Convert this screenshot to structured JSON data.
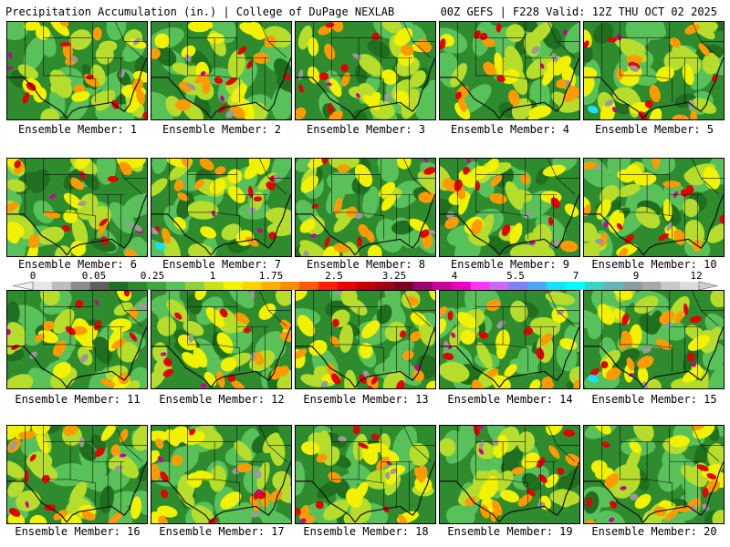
{
  "header": {
    "title_left": "Precipitation Accumulation (in.) | College of DuPage NEXLAB",
    "title_right": "00Z GEFS | F228 Valid: 12Z THU OCT 02 2025"
  },
  "members": [
    {
      "label": "Ensemble Member: 1",
      "seed": 11
    },
    {
      "label": "Ensemble Member: 2",
      "seed": 23
    },
    {
      "label": "Ensemble Member: 3",
      "seed": 37
    },
    {
      "label": "Ensemble Member: 4",
      "seed": 41
    },
    {
      "label": "Ensemble Member: 5",
      "seed": 53
    },
    {
      "label": "Ensemble Member: 6",
      "seed": 67
    },
    {
      "label": "Ensemble Member: 7",
      "seed": 71
    },
    {
      "label": "Ensemble Member: 8",
      "seed": 83
    },
    {
      "label": "Ensemble Member: 9",
      "seed": 97
    },
    {
      "label": "Ensemble Member: 10",
      "seed": 101
    },
    {
      "label": "Ensemble Member: 11",
      "seed": 113
    },
    {
      "label": "Ensemble Member: 12",
      "seed": 127
    },
    {
      "label": "Ensemble Member: 13",
      "seed": 131
    },
    {
      "label": "Ensemble Member: 14",
      "seed": 149
    },
    {
      "label": "Ensemble Member: 15",
      "seed": 151
    },
    {
      "label": "Ensemble Member: 16",
      "seed": 163
    },
    {
      "label": "Ensemble Member: 17",
      "seed": 173
    },
    {
      "label": "Ensemble Member: 18",
      "seed": 181
    },
    {
      "label": "Ensemble Member: 19",
      "seed": 191
    },
    {
      "label": "Ensemble Member: 20",
      "seed": 199
    }
  ],
  "legend": {
    "tick_labels": [
      "0",
      "0.05",
      "0.25",
      "1",
      "1.75",
      "2.5",
      "3.25",
      "4",
      "5.5",
      "7",
      "9",
      "12"
    ],
    "colors": [
      "#e6e6e6",
      "#bdbdbd",
      "#8c8c8c",
      "#5f5f5f",
      "#1f6f1f",
      "#2e8b2e",
      "#3ca83c",
      "#59c159",
      "#8fd13a",
      "#c8e01e",
      "#f2f200",
      "#ffd400",
      "#ffb000",
      "#ff8c00",
      "#ff5a00",
      "#ff1e00",
      "#e60000",
      "#c00000",
      "#a00010",
      "#800020",
      "#a0006e",
      "#c8009b",
      "#e600c8",
      "#ff33ff",
      "#cc66ff",
      "#8080ff",
      "#4da6ff",
      "#1ae0ff",
      "#00ffff",
      "#33d6c8",
      "#5fb8b8",
      "#8c9c9c",
      "#a8a8a8",
      "#c8c8c8",
      "#dcdcdc"
    ]
  },
  "palette": {
    "green_dark": "#1f6f1f",
    "green": "#2e8b2e",
    "green_light": "#59c159",
    "lime": "#b6dd2b",
    "yellow": "#f2f200",
    "orange": "#ff9a00",
    "red": "#e60000",
    "magenta": "#c8009b",
    "gray": "#9a9a9a",
    "cyan": "#1ae0ff"
  }
}
